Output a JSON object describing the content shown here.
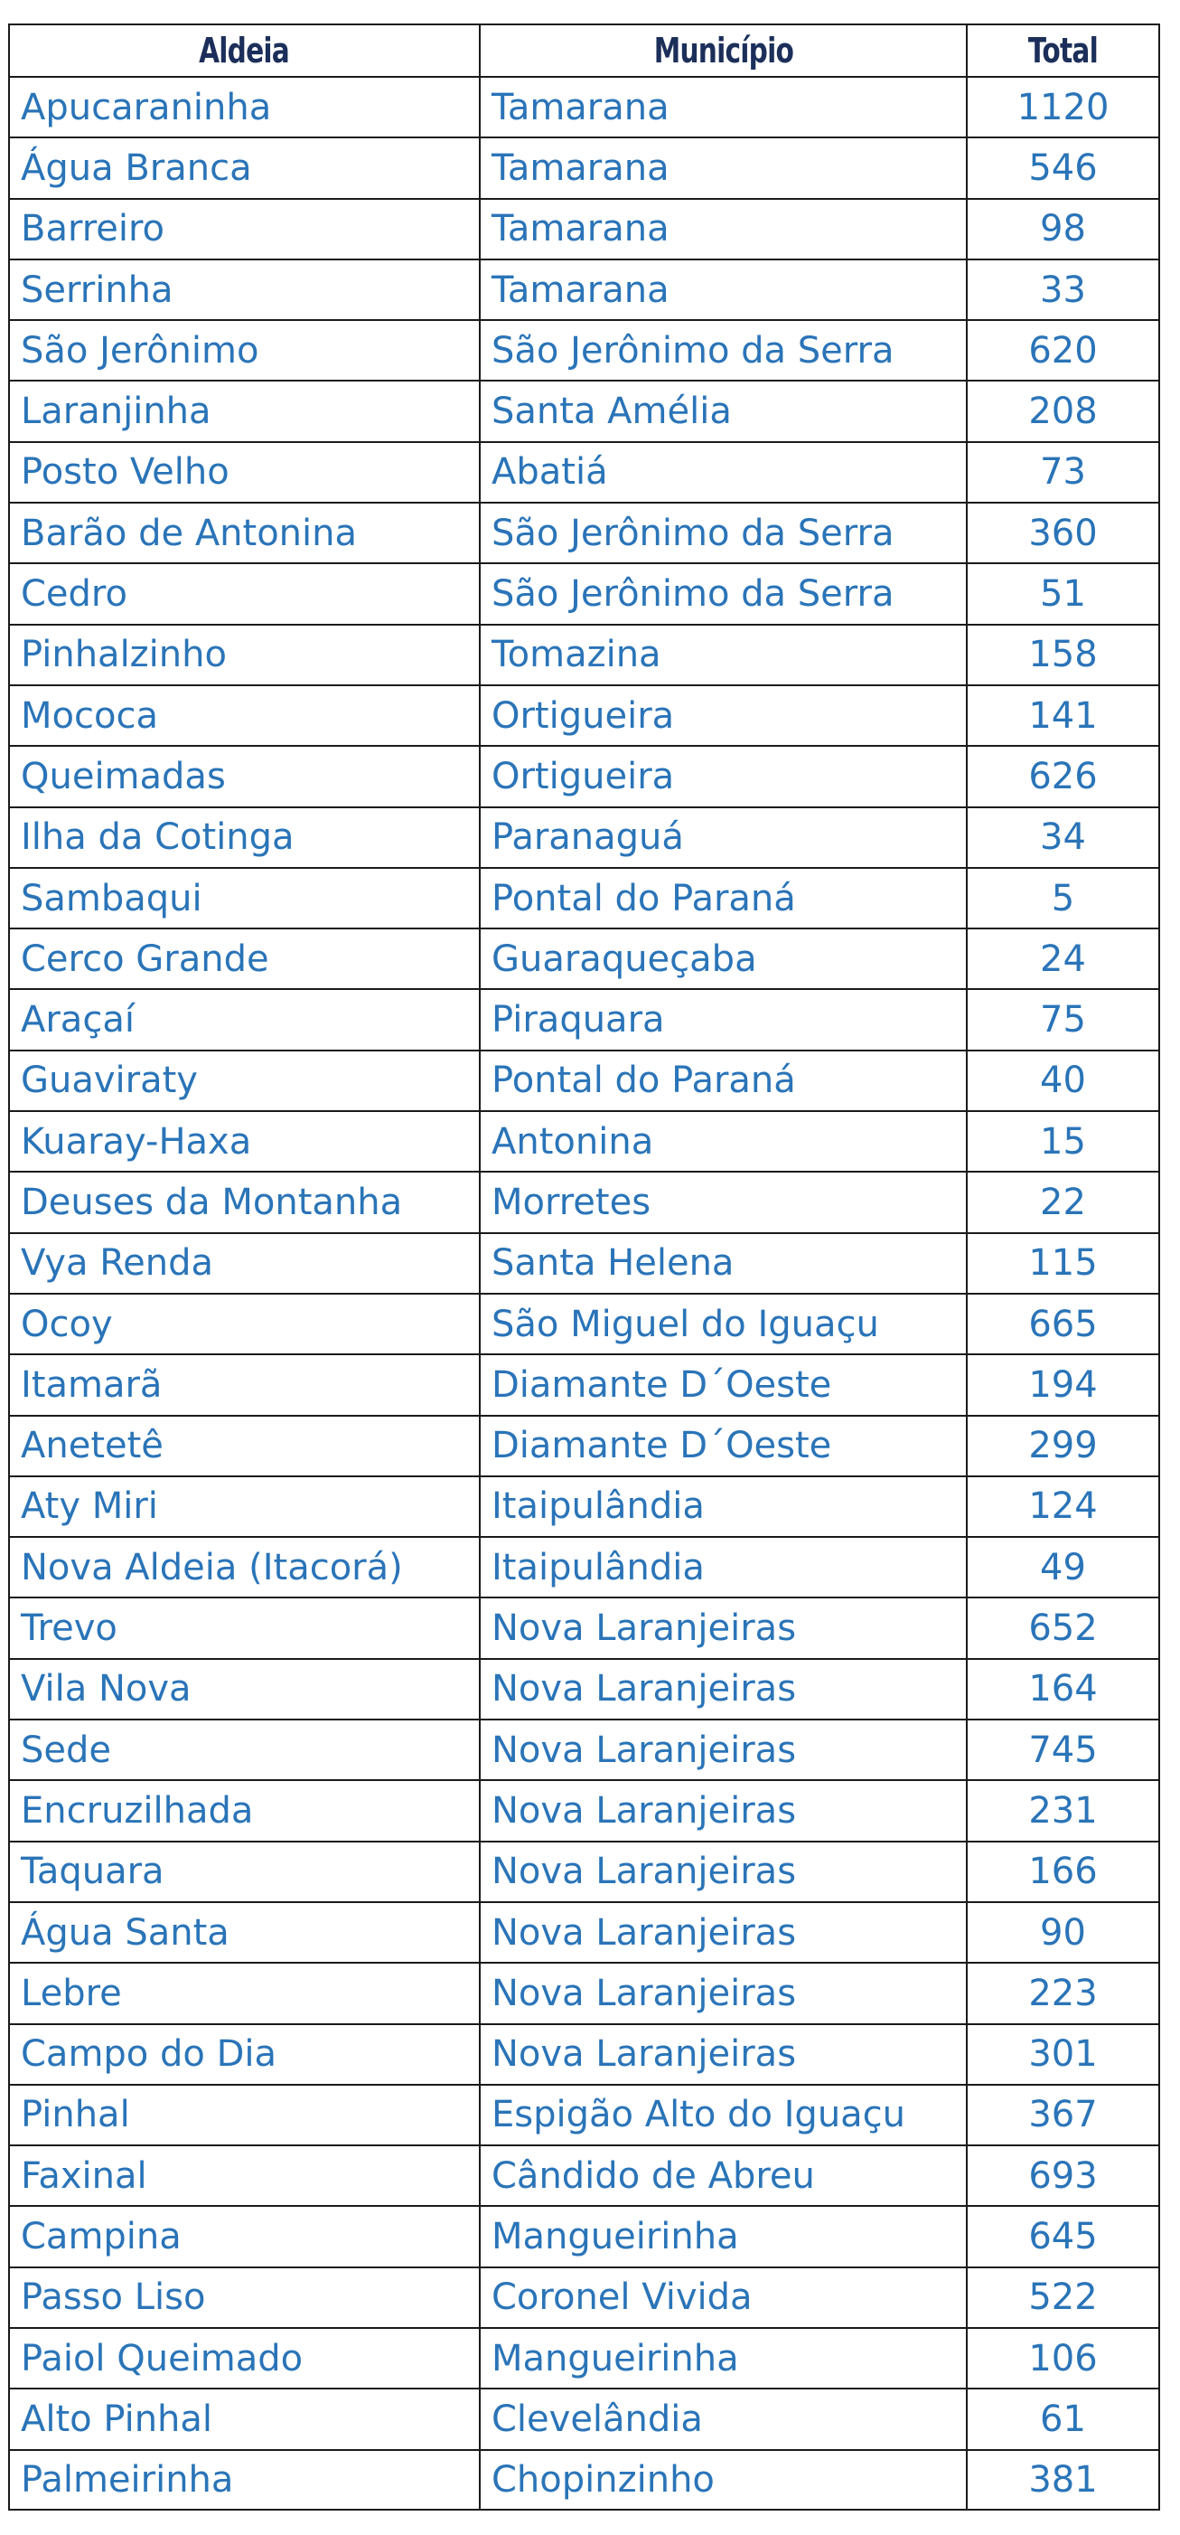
{
  "table": {
    "headers": [
      "Aldeia",
      "Município",
      "Total"
    ],
    "rows": [
      [
        "Apucaraninha",
        "Tamarana",
        "1120"
      ],
      [
        "Água Branca",
        "Tamarana",
        "546"
      ],
      [
        "Barreiro",
        "Tamarana",
        "98"
      ],
      [
        "Serrinha",
        "Tamarana",
        "33"
      ],
      [
        "São Jerônimo",
        "São Jerônimo da Serra",
        "620"
      ],
      [
        "Laranjinha",
        "Santa Amélia",
        "208"
      ],
      [
        "Posto Velho",
        "Abatiá",
        "73"
      ],
      [
        "Barão de Antonina",
        "São Jerônimo da Serra",
        "360"
      ],
      [
        "Cedro",
        "São Jerônimo da Serra",
        "51"
      ],
      [
        "Pinhalzinho",
        "Tomazina",
        "158"
      ],
      [
        "Mococa",
        "Ortigueira",
        "141"
      ],
      [
        "Queimadas",
        "Ortigueira",
        "626"
      ],
      [
        "Ilha da Cotinga",
        "Paranaguá",
        "34"
      ],
      [
        "Sambaqui",
        "Pontal do Paraná",
        "5"
      ],
      [
        "Cerco Grande",
        "Guaraqueçaba",
        "24"
      ],
      [
        "Araçaí",
        "Piraquara",
        "75"
      ],
      [
        "Guaviraty",
        "Pontal do Paraná",
        "40"
      ],
      [
        "Kuaray-Haxa",
        "Antonina",
        "15"
      ],
      [
        "Deuses da Montanha",
        "Morretes",
        "22"
      ],
      [
        "Vya Renda",
        "Santa Helena",
        "115"
      ],
      [
        "Ocoy",
        "São Miguel do Iguaçu",
        "665"
      ],
      [
        "Itamarã",
        "Diamante D´Oeste",
        "194"
      ],
      [
        "Anetetê",
        "Diamante D´Oeste",
        "299"
      ],
      [
        "Aty Miri",
        "Itaipulândia",
        "124"
      ],
      [
        "Nova Aldeia (Itacorá)",
        "Itaipulândia",
        "49"
      ],
      [
        "Trevo",
        "Nova Laranjeiras",
        "652"
      ],
      [
        "Vila Nova",
        "Nova Laranjeiras",
        "164"
      ],
      [
        "Sede",
        "Nova Laranjeiras",
        "745"
      ],
      [
        "Encruzilhada",
        "Nova Laranjeiras",
        "231"
      ],
      [
        "Taquara",
        "Nova Laranjeiras",
        "166"
      ],
      [
        "Água Santa",
        "Nova Laranjeiras",
        "90"
      ],
      [
        "Lebre",
        "Nova Laranjeiras",
        "223"
      ],
      [
        "Campo do Dia",
        "Nova Laranjeiras",
        "301"
      ],
      [
        "Pinhal",
        "Espigão Alto do Iguaçu",
        "367"
      ],
      [
        "Faxinal",
        "Cândido de Abreu",
        "693"
      ],
      [
        "Campina",
        "Mangueirinha",
        "645"
      ],
      [
        "Passo Liso",
        "Coronel Vivida",
        "522"
      ],
      [
        "Paiol Queimado",
        "Mangueirinha",
        "106"
      ],
      [
        "Alto Pinhal",
        "Clevelândia",
        "61"
      ],
      [
        "Palmeirinha",
        "Chopinzinho",
        "381"
      ]
    ]
  },
  "colors": {
    "header_text": "#1c2f5a",
    "cell_text": "#2a74b8",
    "border": "#1a1a1a"
  }
}
